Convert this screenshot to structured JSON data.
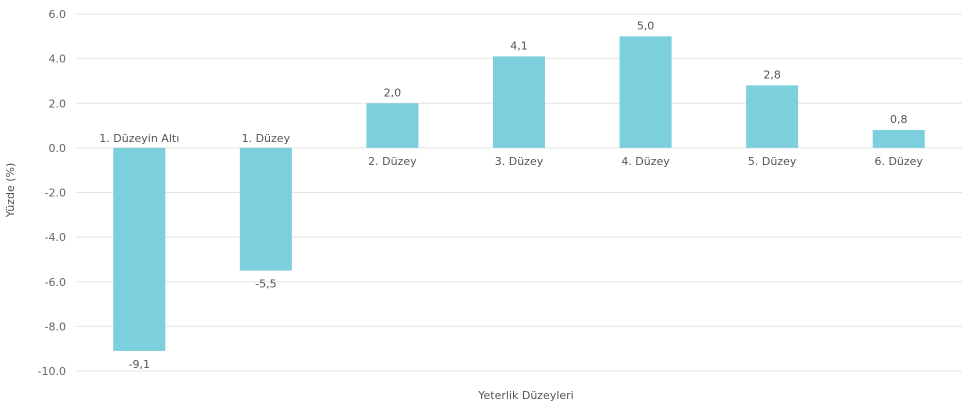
{
  "chart_data": {
    "type": "bar",
    "categories": [
      "1. Düzeyin Altı",
      "1. Düzey",
      "2. Düzey",
      "3. Düzey",
      "4. Düzey",
      "5. Düzey",
      "6. Düzey"
    ],
    "values": [
      -9.1,
      -5.5,
      2.0,
      4.1,
      5.0,
      2.8,
      0.8
    ],
    "value_labels": [
      "-9,1",
      "-5,5",
      "2,0",
      "4,1",
      "5,0",
      "2,8",
      "0,8"
    ],
    "title": "",
    "xlabel": "Yeterlik Düzeyleri",
    "ylabel": "Yüzde (%)",
    "ylim": [
      -10,
      6
    ],
    "yticks": [
      6,
      4,
      2,
      0,
      -2,
      -4,
      -6,
      -8,
      -10
    ],
    "ytick_labels": [
      "6.0",
      "4.0",
      "2.0",
      "0.0",
      "-2.0",
      "-4.0",
      "-6.0",
      "-8.0",
      "-10.0"
    ],
    "grid": true,
    "legend": "none",
    "bar_color": "#7ccfdc",
    "grid_color": "#e4e4e4"
  }
}
